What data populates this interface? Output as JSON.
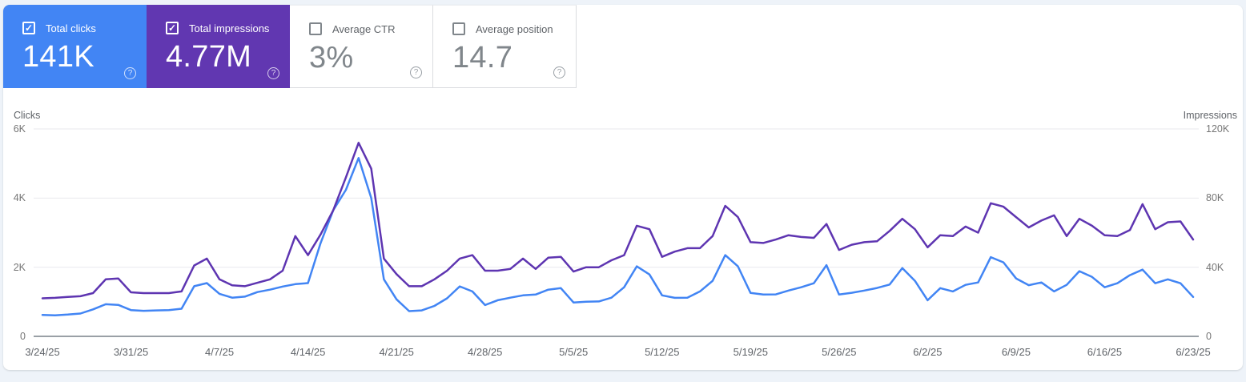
{
  "cards": [
    {
      "label": "Total clicks",
      "value": "141K",
      "checked": true,
      "bg": "#4285f4",
      "style": "colored"
    },
    {
      "label": "Total impressions",
      "value": "4.77M",
      "checked": true,
      "bg": "#6137b1",
      "style": "colored"
    },
    {
      "label": "Average CTR",
      "value": "3%",
      "checked": false,
      "bg": "#ffffff",
      "style": "plain"
    },
    {
      "label": "Average position",
      "value": "14.7",
      "checked": false,
      "bg": "#ffffff",
      "style": "plain"
    }
  ],
  "chart_data": {
    "type": "line",
    "point_interval": "daily",
    "num_points": 92,
    "grid": "horizontal",
    "x_tick_labels": [
      "3/24/25",
      "3/31/25",
      "4/7/25",
      "4/14/25",
      "4/21/25",
      "4/28/25",
      "5/5/25",
      "5/12/25",
      "5/19/25",
      "5/26/25",
      "6/2/25",
      "6/9/25",
      "6/16/25",
      "6/23/25"
    ],
    "left_axis": {
      "title": "Clicks",
      "ticks": [
        "6K",
        "4K",
        "2K",
        "0"
      ],
      "min": 0,
      "max": 6000
    },
    "right_axis": {
      "title": "Impressions",
      "ticks": [
        "120K",
        "80K",
        "40K",
        "0"
      ],
      "min": 0,
      "max": 120000
    },
    "series": [
      {
        "name": "Total clicks",
        "axis": "left",
        "color": "#4285f4",
        "values": [
          620,
          610,
          630,
          660,
          780,
          930,
          910,
          760,
          740,
          750,
          760,
          800,
          1450,
          1540,
          1230,
          1120,
          1150,
          1280,
          1350,
          1440,
          1510,
          1540,
          2700,
          3650,
          4240,
          5160,
          4000,
          1650,
          1070,
          730,
          750,
          880,
          1100,
          1445,
          1300,
          905,
          1045,
          1120,
          1185,
          1210,
          1350,
          1395,
          980,
          1000,
          1010,
          1120,
          1420,
          2025,
          1790,
          1185,
          1115,
          1120,
          1300,
          1605,
          2350,
          2025,
          1255,
          1210,
          1215,
          1325,
          1420,
          1535,
          2060,
          1210,
          1260,
          1325,
          1400,
          1500,
          1975,
          1605,
          1045,
          1395,
          1300,
          1490,
          1560,
          2290,
          2140,
          1675,
          1480,
          1560,
          1300,
          1490,
          1885,
          1720,
          1420,
          1535,
          1770,
          1930,
          1535,
          1650,
          1535,
          1140
        ]
      },
      {
        "name": "Total impressions",
        "axis": "right",
        "color": "#5e35b1",
        "values": [
          22000,
          22300,
          22800,
          23200,
          25000,
          33000,
          33500,
          25500,
          25000,
          25000,
          25000,
          26000,
          41000,
          45000,
          33000,
          29500,
          29000,
          31000,
          33000,
          38000,
          58000,
          47000,
          59000,
          73000,
          92000,
          112000,
          97000,
          45000,
          36000,
          29000,
          29000,
          33000,
          38000,
          45000,
          47000,
          38000,
          38000,
          39000,
          45000,
          39000,
          45500,
          46000,
          37500,
          40000,
          40000,
          44000,
          47000,
          64000,
          62000,
          46000,
          49000,
          51000,
          51000,
          58000,
          75500,
          69000,
          54500,
          54000,
          56000,
          58500,
          57500,
          57000,
          65000,
          50000,
          53000,
          54500,
          55000,
          61000,
          68000,
          62000,
          51500,
          58500,
          58000,
          63500,
          60000,
          77000,
          75000,
          69000,
          63000,
          67000,
          70000,
          58000,
          68000,
          64000,
          58500,
          58000,
          61500,
          76500,
          62000,
          66000,
          66500,
          56000
        ]
      }
    ]
  }
}
